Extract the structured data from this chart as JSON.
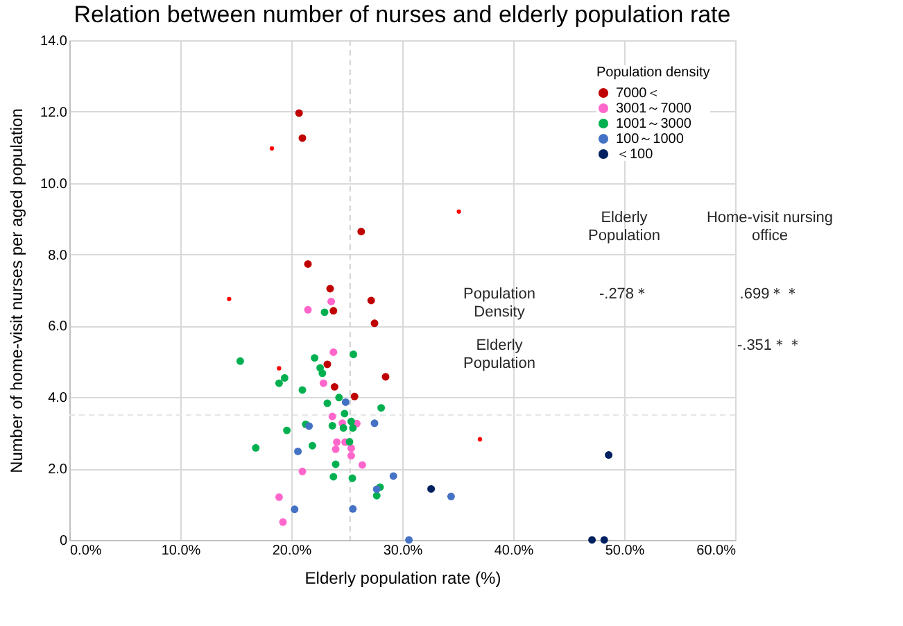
{
  "chart_data": {
    "type": "scatter",
    "title": "Relation between number of nurses and elderly population rate",
    "xlabel": "Elderly population rate (%)",
    "ylabel": "Number of home-visit nurses per aged population",
    "legend_title": "Population density",
    "legend": "top right",
    "grid": true,
    "marker": "circle",
    "xlim": [
      0,
      60
    ],
    "xticks": [
      {
        "value": 0,
        "label": "0.0%"
      },
      {
        "value": 10,
        "label": "10.0%"
      },
      {
        "value": 20,
        "label": "20.0%"
      },
      {
        "value": 30,
        "label": "30.0%"
      },
      {
        "value": 40,
        "label": "40.0%"
      },
      {
        "value": 50,
        "label": "50.0%"
      },
      {
        "value": 60,
        "label": "60.0%"
      }
    ],
    "ylim": [
      0,
      14
    ],
    "yticks": [
      0,
      {
        "value": 2,
        "label": "2.0"
      },
      {
        "value": 4,
        "label": "4.0"
      },
      {
        "value": 6,
        "label": "6.0"
      },
      {
        "value": 8,
        "label": "8.0"
      },
      {
        "value": 10,
        "label": "10.0"
      },
      {
        "value": 12,
        "label": "12.0"
      },
      {
        "value": 14,
        "label": "14.0"
      }
    ],
    "ref_lines": [
      {
        "axis": "x",
        "value": 25.3,
        "color": "#d0d0d0",
        "line_style": "dashed"
      },
      {
        "axis": "y",
        "value": 3.5,
        "color": "#e6e6e6",
        "line_style": "dashed"
      }
    ],
    "series": [
      {
        "name": "7000＜",
        "color": "#c00000",
        "x": [
          20.7,
          21.0,
          26.3,
          21.5,
          23.5,
          27.2,
          23.8,
          27.5,
          23.25,
          28.5,
          23.9,
          25.7
        ],
        "values": [
          11.96,
          11.26,
          8.64,
          7.73,
          7.04,
          6.71,
          6.42,
          6.07,
          4.92,
          4.57,
          4.29,
          4.02
        ]
      },
      {
        "name": "3001～7000",
        "color": "#ff66cc",
        "x": [
          23.6,
          21.5,
          23.8,
          22.9,
          23.7,
          24.6,
          25.9,
          24.1,
          24.85,
          24.0,
          25.4,
          25.4,
          26.4,
          21.0,
          18.9,
          19.25
        ],
        "values": [
          6.68,
          6.45,
          5.26,
          4.39,
          3.46,
          3.27,
          3.26,
          2.74,
          2.74,
          2.54,
          2.57,
          2.36,
          2.1,
          1.92,
          1.2,
          0.5
        ]
      },
      {
        "name": "1001～3000",
        "color": "#00b050",
        "x": [
          23.0,
          15.4,
          25.6,
          22.1,
          22.6,
          22.8,
          19.4,
          18.9,
          21.0,
          24.3,
          23.25,
          28.1,
          24.8,
          25.4,
          21.3,
          23.7,
          24.7,
          25.55,
          19.6,
          25.25,
          21.9,
          16.8,
          24.0,
          23.8,
          25.5,
          28.0,
          27.7
        ],
        "values": [
          6.38,
          5.01,
          5.2,
          5.1,
          4.82,
          4.67,
          4.54,
          4.39,
          4.2,
          3.99,
          3.83,
          3.7,
          3.54,
          3.32,
          3.24,
          3.2,
          3.14,
          3.14,
          3.07,
          2.75,
          2.64,
          2.58,
          2.12,
          1.77,
          1.73,
          1.48,
          1.24
        ]
      },
      {
        "name": "100～1000",
        "color": "#4472c4",
        "x": [
          24.9,
          27.5,
          21.6,
          20.6,
          29.2,
          27.7,
          34.4,
          20.3,
          25.55,
          30.6
        ],
        "values": [
          3.86,
          3.27,
          3.19,
          2.48,
          1.79,
          1.42,
          1.22,
          0.86,
          0.87,
          0.0
        ]
      },
      {
        "name": "＜100",
        "color": "#002060",
        "x": [
          32.6,
          48.6,
          47.1,
          48.2
        ],
        "values": [
          1.43,
          2.38,
          0.0,
          0.0
        ]
      },
      {
        "color": "#ff0000",
        "x": [
          18.25,
          14.4,
          18.9,
          35.1,
          37.0
        ],
        "values": [
          10.97,
          6.75,
          4.81,
          9.2,
          2.82
        ]
      }
    ],
    "annotations": [
      "Elderly\nPopulation",
      "Home-visit nursing\noffice",
      "Population\nDensity",
      "-.278＊",
      ".699＊＊",
      "Elderly\nPopulation",
      "-.351＊＊"
    ]
  }
}
